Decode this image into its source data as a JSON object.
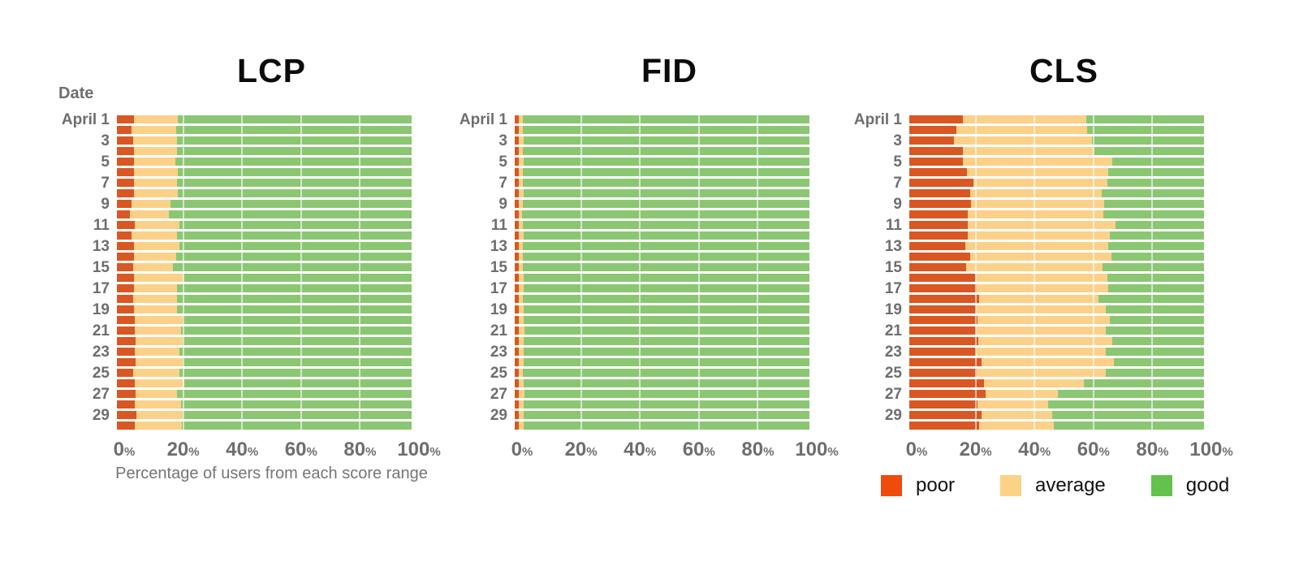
{
  "ylabel_header": "Date",
  "xlabel": "Percentage of users from each score range",
  "axis": {
    "tick_suffix": "%"
  },
  "colors": {
    "bars": {
      "poor": "#d95722",
      "average": "#fbd189",
      "good": "#8bc772"
    },
    "legend": {
      "poor": "#ee4b0c",
      "average": "#fcd287",
      "good": "#63c24d"
    },
    "axis_text": "#6e6e6e",
    "title_text": "#0b0b0b",
    "caption_text": "#757575",
    "gridline": "rgba(255,255,255,0.6)"
  },
  "legend": {
    "items": [
      {
        "label": "poor",
        "color": "#ee4b0c"
      },
      {
        "label": "average",
        "color": "#fcd287"
      },
      {
        "label": "good",
        "color": "#63c24d"
      }
    ]
  },
  "chart_data": [
    {
      "type": "bar",
      "orientation": "horizontal",
      "stacked": true,
      "title": "LCP",
      "ylabel_header": "Date",
      "xlabel": "Percentage of users from each score range",
      "xlim": [
        0,
        100
      ],
      "x_ticks": [
        0,
        20,
        40,
        60,
        80,
        100
      ],
      "categories": [
        "April 1",
        "",
        "3",
        "",
        "5",
        "",
        "7",
        "",
        "9",
        "",
        "11",
        "",
        "13",
        "",
        "15",
        "",
        "17",
        "",
        "19",
        "",
        "21",
        "",
        "23",
        "",
        "25",
        "",
        "27",
        "",
        "29",
        ""
      ],
      "series": [
        {
          "name": "poor",
          "values": [
            5.8,
            5.0,
            5.5,
            5.8,
            5.8,
            5.8,
            5.8,
            5.8,
            5.0,
            4.3,
            6.0,
            5.0,
            5.8,
            5.8,
            5.5,
            5.8,
            5.8,
            5.5,
            5.8,
            6.1,
            6.1,
            6.4,
            6.1,
            6.4,
            5.5,
            6.1,
            6.4,
            6.1,
            6.7,
            6.1
          ]
        },
        {
          "name": "average",
          "values": [
            14.8,
            15.0,
            14.8,
            14.5,
            13.9,
            14.8,
            14.5,
            14.8,
            13.3,
            13.3,
            15.3,
            15.3,
            15.3,
            14.2,
            13.6,
            16.9,
            14.5,
            14.8,
            14.5,
            16.3,
            15.6,
            16.0,
            15.0,
            16.0,
            15.8,
            16.8,
            13.9,
            15.6,
            15.7,
            15.9
          ]
        },
        {
          "name": "good",
          "values": [
            79.4,
            80.0,
            79.7,
            79.7,
            80.3,
            79.4,
            79.7,
            79.4,
            81.7,
            82.4,
            78.7,
            79.7,
            78.9,
            80.0,
            80.9,
            77.3,
            79.7,
            79.7,
            79.7,
            77.6,
            78.3,
            77.6,
            78.9,
            77.6,
            78.7,
            77.1,
            79.7,
            78.3,
            77.6,
            78.0
          ]
        }
      ]
    },
    {
      "type": "bar",
      "orientation": "horizontal",
      "stacked": true,
      "title": "FID",
      "xlim": [
        0,
        100
      ],
      "x_ticks": [
        0,
        20,
        40,
        60,
        80,
        100
      ],
      "categories": [
        "April 1",
        "",
        "3",
        "",
        "5",
        "",
        "7",
        "",
        "9",
        "",
        "11",
        "",
        "13",
        "",
        "15",
        "",
        "17",
        "",
        "19",
        "",
        "21",
        "",
        "23",
        "",
        "25",
        "",
        "27",
        "",
        "29",
        ""
      ],
      "series": [
        {
          "name": "poor",
          "values": [
            1.3,
            1.3,
            1.3,
            1.3,
            1.3,
            1.3,
            1.3,
            1.3,
            1.3,
            1.3,
            1.3,
            1.3,
            1.3,
            1.3,
            1.3,
            1.3,
            1.3,
            1.3,
            1.3,
            1.3,
            1.3,
            1.3,
            1.3,
            1.3,
            1.3,
            1.3,
            1.3,
            1.3,
            1.3,
            1.3
          ]
        },
        {
          "name": "average",
          "values": [
            1.5,
            1.4,
            1.6,
            1.5,
            1.6,
            1.5,
            1.5,
            1.6,
            1.4,
            1.3,
            1.5,
            1.6,
            1.5,
            1.4,
            1.5,
            1.7,
            1.6,
            1.5,
            1.6,
            1.8,
            2.0,
            1.7,
            1.6,
            1.8,
            1.5,
            1.6,
            1.9,
            1.7,
            1.6,
            1.8
          ]
        },
        {
          "name": "good",
          "values": [
            97.2,
            97.3,
            97.1,
            97.2,
            97.1,
            97.2,
            97.2,
            97.1,
            97.3,
            97.4,
            97.2,
            97.1,
            97.2,
            97.3,
            97.2,
            97.0,
            97.1,
            97.2,
            97.1,
            96.9,
            96.7,
            97.0,
            97.1,
            96.9,
            97.2,
            97.1,
            96.8,
            97.0,
            97.1,
            96.9
          ]
        }
      ]
    },
    {
      "type": "bar",
      "orientation": "horizontal",
      "stacked": true,
      "title": "CLS",
      "xlim": [
        0,
        100
      ],
      "x_ticks": [
        0,
        20,
        40,
        60,
        80,
        100
      ],
      "categories": [
        "April 1",
        "",
        "3",
        "",
        "5",
        "",
        "7",
        "",
        "9",
        "",
        "11",
        "",
        "13",
        "",
        "15",
        "",
        "17",
        "",
        "19",
        "",
        "21",
        "",
        "23",
        "",
        "25",
        "",
        "27",
        "",
        "29",
        ""
      ],
      "series": [
        {
          "name": "poor",
          "values": [
            18.1,
            15.9,
            15.1,
            18.2,
            18.2,
            19.6,
            21.8,
            20.7,
            21.0,
            19.8,
            19.8,
            19.8,
            19.1,
            20.7,
            19.3,
            22.4,
            23.0,
            23.7,
            22.5,
            23.2,
            22.5,
            23.4,
            22.5,
            24.4,
            22.8,
            25.3,
            25.8,
            23.2,
            24.4,
            23.7
          ]
        },
        {
          "name": "average",
          "values": [
            42.0,
            44.3,
            46.9,
            44.2,
            50.8,
            47.9,
            45.3,
            44.6,
            45.2,
            46.1,
            50.1,
            48.3,
            48.5,
            47.8,
            46.2,
            44.7,
            44.6,
            40.6,
            44.2,
            44.9,
            44.2,
            45.6,
            44.2,
            45.0,
            43.9,
            33.9,
            24.6,
            24.0,
            24.0,
            25.3
          ]
        },
        {
          "name": "good",
          "values": [
            39.9,
            39.8,
            38.0,
            37.6,
            31.0,
            32.5,
            32.9,
            34.7,
            33.8,
            34.1,
            30.1,
            31.9,
            32.4,
            31.5,
            34.5,
            32.9,
            32.4,
            35.7,
            33.3,
            31.9,
            33.3,
            31.0,
            33.3,
            30.6,
            33.3,
            40.8,
            49.6,
            52.8,
            51.6,
            51.0
          ]
        }
      ]
    }
  ]
}
